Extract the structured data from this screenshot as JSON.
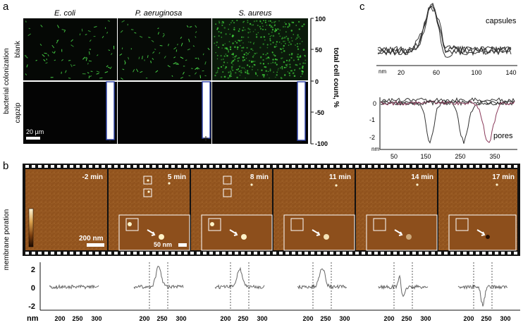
{
  "panel_a": {
    "letter": "a",
    "columns": [
      "E. coli",
      "P. aeruginosa",
      "S. aureus"
    ],
    "rows": [
      "blank",
      "capzip"
    ],
    "side_label": "bacterial colonization",
    "scale_bar": "20 µm",
    "axis_title": "total cell count, %",
    "ticks": [
      "100",
      "50",
      "0",
      "-50",
      "-100"
    ]
  },
  "panel_b": {
    "letter": "b",
    "side_label": "membrane poration",
    "times": [
      "-2 min",
      "5 min",
      "8 min",
      "11 min",
      "14 min",
      "17 min"
    ],
    "scale_bar_large": "200 nm",
    "scale_bar_small": "50 nm",
    "profile_y_ticks": [
      "2",
      "0",
      "-2"
    ],
    "profile_x_unit": "nm",
    "profile_x_ticks": [
      "200",
      "250",
      "300"
    ]
  },
  "panel_c": {
    "letter": "c",
    "top_label": "capsules",
    "top_x_unit": "nm",
    "top_x_ticks": [
      "20",
      "60",
      "100",
      "140"
    ],
    "bottom_label": "pores",
    "bottom_x_unit": "nm",
    "bottom_y_ticks": [
      "0",
      "-1",
      "-2"
    ],
    "bottom_x_ticks": [
      "50",
      "150",
      "250",
      "350"
    ]
  },
  "colors": {
    "afm": "#9a5a22",
    "fluor_green": "#3fd03a",
    "bar_blue": "#2a3fa8",
    "trace": "#555555"
  }
}
